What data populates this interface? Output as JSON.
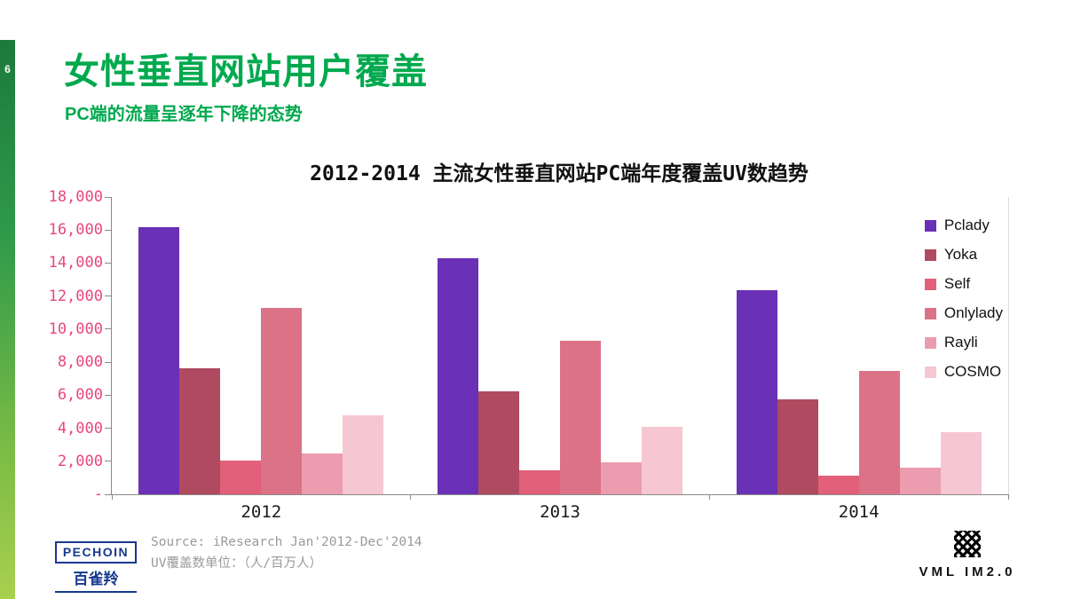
{
  "slide": {
    "page_number": "6",
    "title": "女性垂直网站用户覆盖",
    "subtitle": "PC端的流量呈逐年下降的态势"
  },
  "chart_data": {
    "type": "bar",
    "title": "2012-2014 主流女性垂直网站PC端年度覆盖UV数趋势",
    "categories": [
      "2012",
      "2013",
      "2014"
    ],
    "series": [
      {
        "name": "Pclady",
        "color": "#6a30b5",
        "values": [
          16200,
          14300,
          12350
        ]
      },
      {
        "name": "Yoka",
        "color": "#b04a60",
        "values": [
          7650,
          6250,
          5750
        ]
      },
      {
        "name": "Self",
        "color": "#e26079",
        "values": [
          2050,
          1450,
          1150
        ]
      },
      {
        "name": "Onlylady",
        "color": "#db7287",
        "values": [
          11300,
          9300,
          7450
        ]
      },
      {
        "name": "Rayli",
        "color": "#ec9caf",
        "values": [
          2450,
          1950,
          1600
        ]
      },
      {
        "name": "COSMO",
        "color": "#f6c6d2",
        "values": [
          4800,
          4100,
          3750
        ]
      }
    ],
    "ylim": [
      0,
      18000
    ],
    "yticks": [
      {
        "label": "18,000",
        "value": 18000
      },
      {
        "label": "16,000",
        "value": 16000
      },
      {
        "label": "14,000",
        "value": 14000
      },
      {
        "label": "12,000",
        "value": 12000
      },
      {
        "label": "10,000",
        "value": 10000
      },
      {
        "label": "8,000",
        "value": 8000
      },
      {
        "label": "6,000",
        "value": 6000
      },
      {
        "label": "4,000",
        "value": 4000
      },
      {
        "label": "2,000",
        "value": 2000
      },
      {
        "label": "-",
        "value": 0
      }
    ],
    "legend_position": "right",
    "grid": false,
    "axis_label_color": "#e8467c"
  },
  "footer": {
    "source_text": "Source: iResearch Jan'2012-Dec'2014\nUV覆盖数单位：（人/百万人）",
    "brand_left": {
      "name": "PECHOIN",
      "cn": "百雀羚"
    },
    "brand_right": "VML IM2.0"
  },
  "colors": {
    "accent_green": "#00a94e",
    "axis_pink": "#e8467c",
    "brand_blue": "#16388e"
  }
}
